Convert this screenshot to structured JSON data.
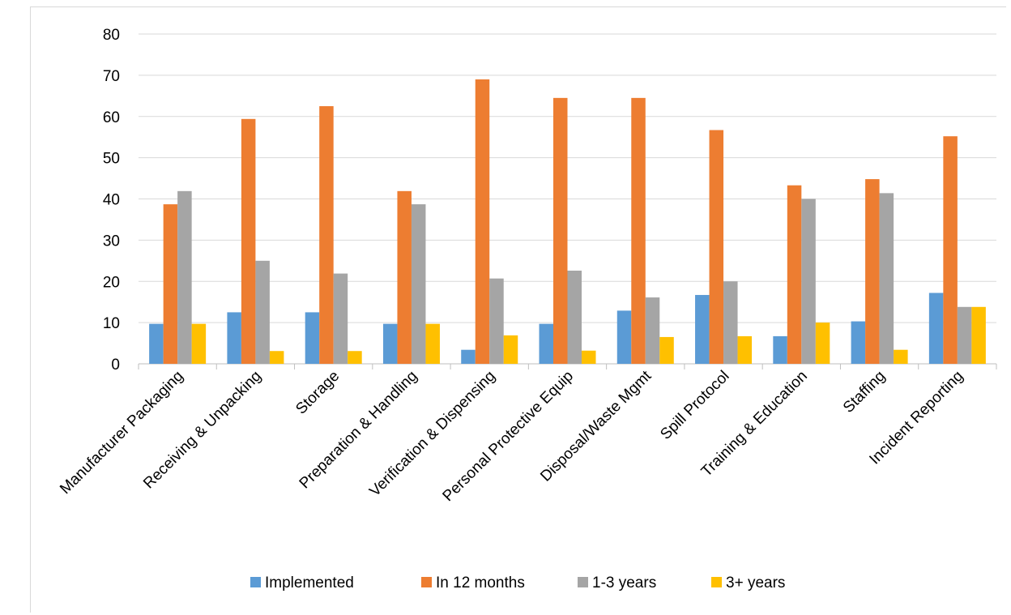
{
  "chart_data": {
    "type": "bar",
    "categories": [
      "Manufacturer Packaging",
      "Receiving & Unpacking",
      "Storage",
      "Preparation & Handling",
      "Verification & Dispensing",
      "Personal Protective Equip",
      "Disposal/Waste Mgmt",
      "Spill Protocol",
      "Training & Education",
      "Staffing",
      "Incident Reporting"
    ],
    "series": [
      {
        "name": "Implemented",
        "color": "#5b9bd5",
        "values": [
          9.7,
          12.5,
          12.5,
          9.7,
          3.4,
          9.7,
          12.9,
          16.7,
          6.7,
          10.3,
          17.2
        ]
      },
      {
        "name": "In 12 months",
        "color": "#ed7d31",
        "values": [
          38.7,
          59.4,
          62.5,
          41.9,
          69.0,
          64.5,
          64.5,
          56.7,
          43.3,
          44.8,
          55.2
        ]
      },
      {
        "name": "1-3 years",
        "color": "#a5a5a5",
        "values": [
          41.9,
          25.0,
          21.9,
          38.7,
          20.7,
          22.6,
          16.1,
          20.0,
          40.0,
          41.4,
          13.8
        ]
      },
      {
        "name": "3+ years",
        "color": "#ffc000",
        "values": [
          9.7,
          3.1,
          3.1,
          9.7,
          6.9,
          3.2,
          6.5,
          6.7,
          10.0,
          3.4,
          13.8
        ]
      }
    ],
    "yticks": [
      "0",
      "10",
      "20",
      "30",
      "40",
      "50",
      "60",
      "70",
      "80"
    ],
    "ylim": [
      0,
      80
    ],
    "grid": true,
    "legend_position": "bottom"
  }
}
